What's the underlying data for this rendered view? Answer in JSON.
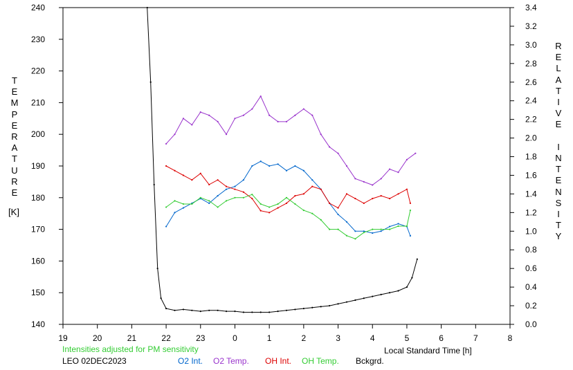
{
  "chart_data": {
    "type": "line",
    "title": "",
    "left_axis_label": "TEMPERATURE",
    "left_axis_unit": "[K]",
    "right_axis_label": "RELATIVE INTENSITY",
    "xlabel": "Local Standard Time [h]",
    "station_date": "LEO 02DEC2023",
    "note": "Intensities adjusted for PM sensitivity",
    "x_ticks": [
      "19",
      "20",
      "21",
      "22",
      "23",
      "0",
      "1",
      "2",
      "3",
      "4",
      "5",
      "6",
      "7",
      "8"
    ],
    "xlim": [
      19,
      32
    ],
    "ylim_left": [
      140,
      240
    ],
    "y_ticks_left": [
      140,
      150,
      160,
      170,
      180,
      190,
      200,
      210,
      220,
      230,
      240
    ],
    "ylim_right": [
      0.0,
      3.4
    ],
    "y_ticks_right": [
      "0.0",
      "0.2",
      "0.4",
      "0.6",
      "0.8",
      "1.0",
      "1.2",
      "1.4",
      "1.6",
      "1.8",
      "2.0",
      "2.2",
      "2.4",
      "2.6",
      "2.8",
      "3.0",
      "3.2",
      "3.4"
    ],
    "legend": [
      "O2 Int.",
      "O2 Temp.",
      "OH Int.",
      "OH Temp.",
      "Bckgrd."
    ],
    "series": [
      {
        "name": "O2 Temp.",
        "axis": "left",
        "color": "#9933cc",
        "x": [
          22.0,
          22.25,
          22.5,
          22.75,
          23.0,
          23.25,
          23.5,
          23.75,
          24.0,
          24.25,
          24.5,
          24.75,
          25.0,
          25.25,
          25.5,
          25.75,
          26.0,
          26.25,
          26.5,
          26.75,
          27.0,
          27.25,
          27.5,
          27.75,
          28.0,
          28.25,
          28.5,
          28.75,
          29.0,
          29.25
        ],
        "y": [
          197,
          200,
          205,
          203,
          207,
          206,
          204,
          200,
          205,
          206,
          208,
          212,
          206,
          204,
          204,
          206,
          208,
          206,
          200,
          196,
          194,
          190,
          186,
          185,
          184,
          186,
          189,
          188,
          192,
          194
        ]
      },
      {
        "name": "O2 Int.",
        "axis": "right",
        "color": "#0066cc",
        "x": [
          22.0,
          22.25,
          22.5,
          22.75,
          23.0,
          23.25,
          23.5,
          23.75,
          24.0,
          24.25,
          24.5,
          24.75,
          25.0,
          25.25,
          25.5,
          25.75,
          26.0,
          26.25,
          26.5,
          26.75,
          27.0,
          27.25,
          27.5,
          27.75,
          28.0,
          28.25,
          28.5,
          28.75,
          29.0,
          29.1
        ],
        "y": [
          1.05,
          1.2,
          1.25,
          1.3,
          1.35,
          1.3,
          1.38,
          1.45,
          1.48,
          1.55,
          1.7,
          1.75,
          1.7,
          1.72,
          1.65,
          1.7,
          1.65,
          1.55,
          1.45,
          1.3,
          1.18,
          1.1,
          1.0,
          1.0,
          0.98,
          1.0,
          1.05,
          1.08,
          1.05,
          0.95
        ]
      },
      {
        "name": "OH Int.",
        "axis": "right",
        "color": "#dd0000",
        "x": [
          22.0,
          22.25,
          22.5,
          22.75,
          23.0,
          23.25,
          23.5,
          23.75,
          24.0,
          24.25,
          24.5,
          24.75,
          25.0,
          25.25,
          25.5,
          25.75,
          26.0,
          26.25,
          26.5,
          26.75,
          27.0,
          27.25,
          27.5,
          27.75,
          28.0,
          28.25,
          28.5,
          28.75,
          29.0,
          29.1
        ],
        "y": [
          1.7,
          1.65,
          1.6,
          1.55,
          1.62,
          1.5,
          1.55,
          1.48,
          1.45,
          1.42,
          1.35,
          1.22,
          1.2,
          1.25,
          1.3,
          1.38,
          1.4,
          1.48,
          1.45,
          1.3,
          1.25,
          1.4,
          1.35,
          1.3,
          1.35,
          1.38,
          1.35,
          1.4,
          1.45,
          1.3
        ]
      },
      {
        "name": "OH Temp.",
        "axis": "left",
        "color": "#33cc33",
        "x": [
          22.0,
          22.25,
          22.5,
          22.75,
          23.0,
          23.25,
          23.5,
          23.75,
          24.0,
          24.25,
          24.5,
          24.75,
          25.0,
          25.25,
          25.5,
          25.75,
          26.0,
          26.25,
          26.5,
          26.75,
          27.0,
          27.25,
          27.5,
          27.75,
          28.0,
          28.25,
          28.5,
          28.75,
          29.0,
          29.1
        ],
        "y": [
          177,
          179,
          178,
          178,
          180,
          179,
          177,
          179,
          180,
          180,
          181,
          178,
          177,
          178,
          180,
          178,
          176,
          175,
          173,
          170,
          170,
          168,
          167,
          169,
          170,
          170,
          170,
          171,
          171,
          176
        ]
      },
      {
        "name": "Bckgrd.",
        "axis": "right",
        "color": "#000000",
        "x": [
          21.45,
          21.55,
          21.65,
          21.75,
          21.85,
          22.0,
          22.25,
          22.5,
          22.75,
          23.0,
          23.25,
          23.5,
          23.75,
          24.0,
          24.25,
          24.5,
          24.75,
          25.0,
          25.25,
          25.5,
          25.75,
          26.0,
          26.25,
          26.5,
          26.75,
          27.0,
          27.25,
          27.5,
          27.75,
          28.0,
          28.25,
          28.5,
          28.75,
          29.0,
          29.15,
          29.3
        ],
        "y": [
          3.4,
          2.6,
          1.5,
          0.6,
          0.28,
          0.17,
          0.15,
          0.16,
          0.15,
          0.14,
          0.15,
          0.15,
          0.14,
          0.14,
          0.13,
          0.13,
          0.13,
          0.13,
          0.14,
          0.15,
          0.16,
          0.17,
          0.18,
          0.19,
          0.2,
          0.22,
          0.24,
          0.26,
          0.28,
          0.3,
          0.32,
          0.34,
          0.36,
          0.4,
          0.5,
          0.7
        ]
      }
    ]
  },
  "page_labels": {
    "left_letters": [
      "T",
      "E",
      "M",
      "P",
      "E",
      "R",
      "A",
      "T",
      "U",
      "R",
      "E"
    ],
    "right_letters": [
      "R",
      "E",
      "L",
      "A",
      "T",
      "I",
      "V",
      "E",
      "",
      "I",
      "N",
      "T",
      "E",
      "N",
      "S",
      "I",
      "T",
      "Y"
    ]
  }
}
